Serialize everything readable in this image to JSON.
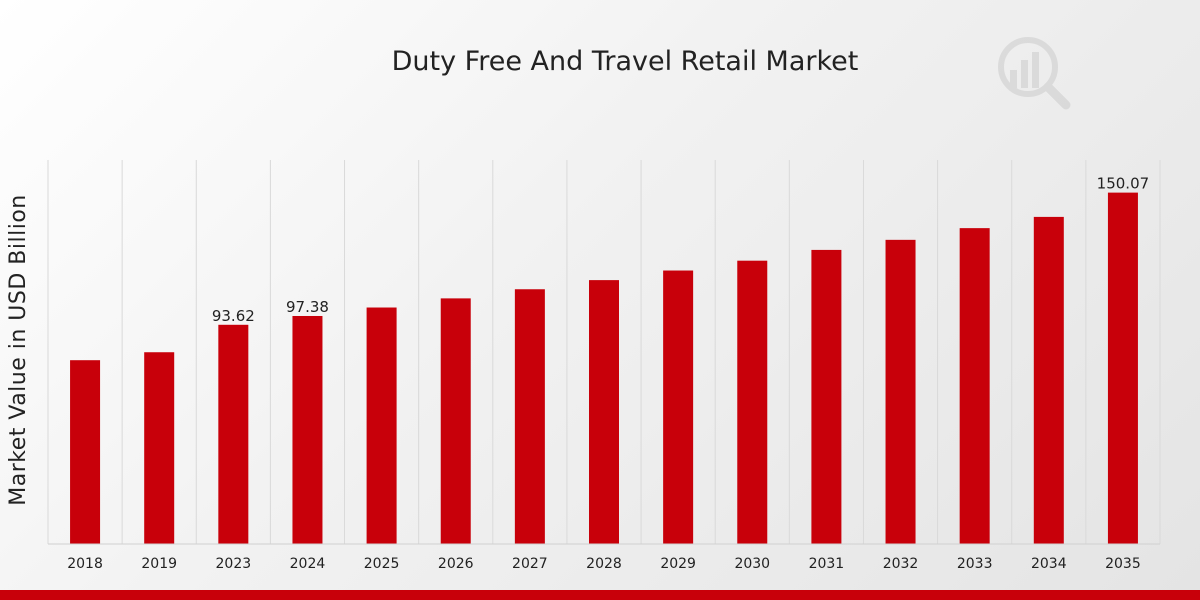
{
  "chart_data": {
    "type": "bar",
    "title": "Duty Free And Travel Retail Market",
    "ylabel": "Market Value in USD Billion",
    "xlabel": "",
    "categories": [
      "2018",
      "2019",
      "2023",
      "2024",
      "2025",
      "2026",
      "2027",
      "2028",
      "2029",
      "2030",
      "2031",
      "2032",
      "2033",
      "2034",
      "2035"
    ],
    "values": [
      78.5,
      81.9,
      93.62,
      97.38,
      101.0,
      104.9,
      108.8,
      112.7,
      116.8,
      121.0,
      125.6,
      129.9,
      134.9,
      139.7,
      150.07
    ],
    "data_labels": [
      {
        "index": 2,
        "text": "93.62"
      },
      {
        "index": 3,
        "text": "97.38"
      },
      {
        "index": 14,
        "text": "150.07"
      }
    ],
    "ylim": [
      0,
      164
    ],
    "grid": "vertical",
    "bar_color": "#c8000a",
    "accent_band_color": "#c8000a"
  },
  "logo": {
    "icon": "bar-chart-magnifier-icon"
  }
}
